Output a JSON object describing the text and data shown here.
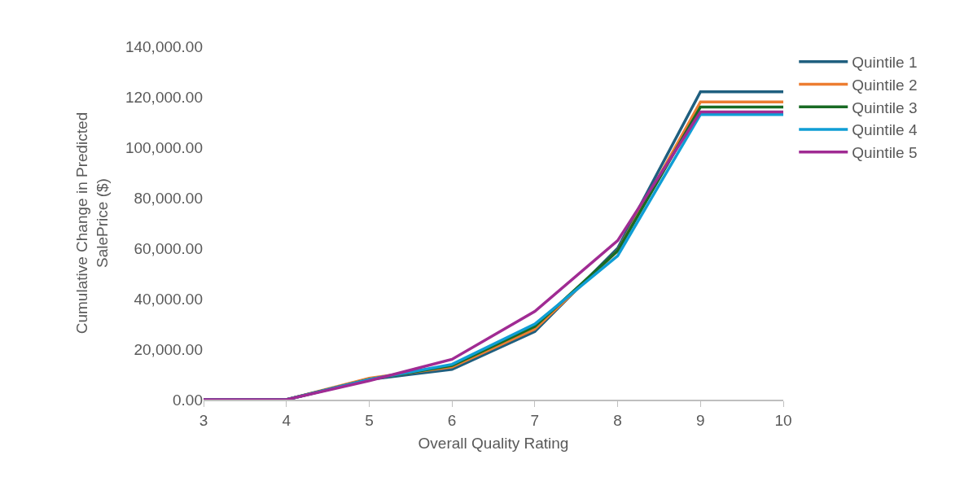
{
  "chart_data": {
    "type": "line",
    "xlabel": "Overall Quality Rating",
    "ylabel": "Cumulative Change in Predicted SalePrice ($)",
    "x": [
      3,
      4,
      5,
      6,
      7,
      8,
      9,
      10
    ],
    "series": [
      {
        "name": "Quintile 1",
        "color": "#1f5f7f",
        "values": [
          0,
          0,
          8000,
          12000,
          27000,
          60000,
          122000,
          122000
        ]
      },
      {
        "name": "Quintile 2",
        "color": "#ed7d31",
        "values": [
          0,
          0,
          8500,
          13000,
          28000,
          59000,
          118000,
          118000
        ]
      },
      {
        "name": "Quintile 3",
        "color": "#196b24",
        "values": [
          0,
          0,
          8000,
          13500,
          29000,
          59000,
          116000,
          116000
        ]
      },
      {
        "name": "Quintile 4",
        "color": "#0f9ed5",
        "values": [
          0,
          0,
          8000,
          14000,
          30000,
          57000,
          113000,
          113000
        ]
      },
      {
        "name": "Quintile 5",
        "color": "#a02b93",
        "values": [
          0,
          0,
          7500,
          16000,
          35000,
          63000,
          114000,
          114000
        ]
      }
    ],
    "xlim": [
      3,
      10
    ],
    "xticks": [
      3,
      4,
      5,
      6,
      7,
      8,
      9,
      10
    ],
    "ylim": [
      0,
      140000
    ],
    "yticks": [
      {
        "value": 0,
        "label": "0.00"
      },
      {
        "value": 20000,
        "label": "20,000.00"
      },
      {
        "value": 40000,
        "label": "40,000.00"
      },
      {
        "value": 60000,
        "label": "60,000.00"
      },
      {
        "value": 80000,
        "label": "80,000.00"
      },
      {
        "value": 100000,
        "label": "100,000.00"
      },
      {
        "value": 120000,
        "label": "120,000.00"
      },
      {
        "value": 140000,
        "label": "140,000.00"
      }
    ],
    "grid": false,
    "legend": "top right",
    "marker": "none",
    "line_style": "solid"
  }
}
